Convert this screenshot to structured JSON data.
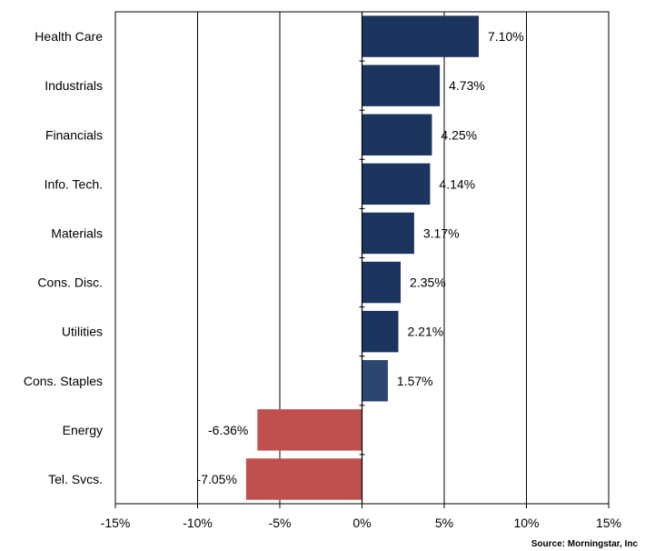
{
  "chart_data": {
    "type": "bar",
    "orientation": "horizontal",
    "categories": [
      "Health Care",
      "Industrials",
      "Financials",
      "Info. Tech.",
      "Materials",
      "Cons. Disc.",
      "Utilities",
      "Cons. Staples",
      "Energy",
      "Tel. Svcs."
    ],
    "values": [
      7.1,
      4.73,
      4.25,
      4.14,
      3.17,
      2.35,
      2.21,
      1.57,
      -6.36,
      -7.05
    ],
    "data_labels": [
      "7.10%",
      "4.73%",
      "4.25%",
      "4.14%",
      "3.17%",
      "2.35%",
      "2.21%",
      "1.57%",
      "-6.36%",
      "-7.05%"
    ],
    "xlim": [
      -15,
      15
    ],
    "x_ticks": [
      -15,
      -10,
      -5,
      0,
      5,
      10,
      15
    ],
    "x_tick_labels": [
      "-15%",
      "-10%",
      "-5%",
      "0%",
      "5%",
      "10%",
      "15%"
    ],
    "grid": true,
    "colors": {
      "positive": "#1b355f",
      "positive_light": "#2c4670",
      "negative": "#c0504d",
      "grid": "#000000"
    }
  },
  "footer": {
    "source": "Source:  Morningstar, Inc"
  }
}
